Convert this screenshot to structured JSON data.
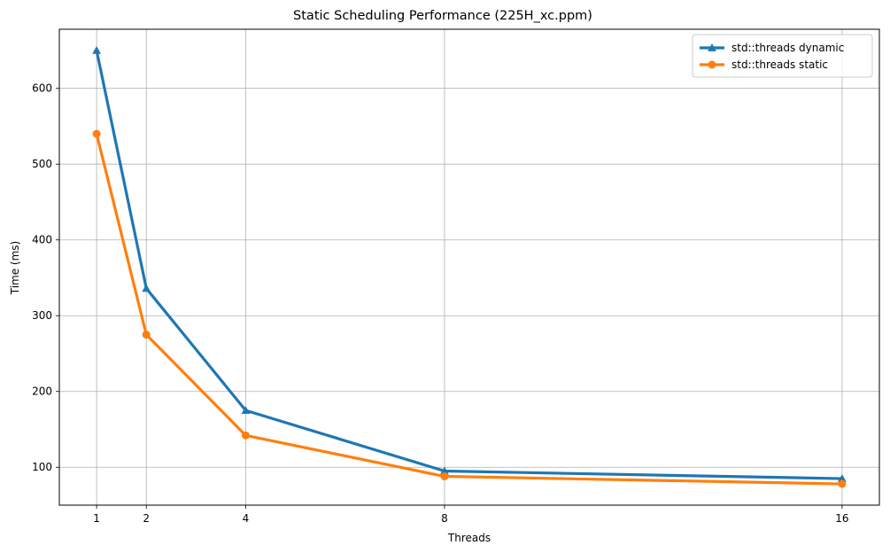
{
  "chart_data": {
    "type": "line",
    "title": "Static Scheduling Performance (225H_xc.ppm)",
    "xlabel": "Threads",
    "ylabel": "Time (ms)",
    "x": [
      1,
      2,
      4,
      8,
      16
    ],
    "x_ticks": [
      "1",
      "2",
      "4",
      "8",
      "16"
    ],
    "y_ticks": [
      "100",
      "200",
      "300",
      "400",
      "500",
      "600"
    ],
    "xlim": [
      0.25,
      16.75
    ],
    "ylim": [
      50,
      678
    ],
    "grid": true,
    "legend_position": "top-right",
    "series": [
      {
        "name": "std::threads dynamic",
        "values": [
          650,
          336,
          175,
          95,
          85
        ],
        "color": "#1f77b4",
        "marker": "triangle"
      },
      {
        "name": "std::threads static",
        "values": [
          540,
          275,
          142,
          88,
          78
        ],
        "color": "#ff7f0e",
        "marker": "circle"
      }
    ]
  }
}
